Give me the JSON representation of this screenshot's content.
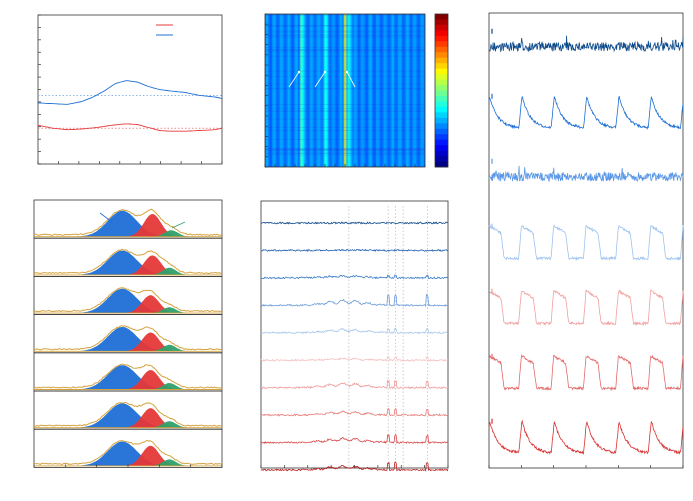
{
  "colors": {
    "blue_dark": "#0d4a8c",
    "blue": "#1f6fd6",
    "blue_light": "#5a97e6",
    "blue_pale": "#9ec2ee",
    "red_pale": "#f1a0a0",
    "red": "#e56a6a",
    "red_dark": "#d93030",
    "peak_blue": "#1f6fd6",
    "peak_red": "#e53838",
    "peak_green": "#2fa06a",
    "envelope": "#d4a23c",
    "dotted": "#8fb8e8",
    "dotted_red": "#e88a8a"
  },
  "chart_data": [
    {
      "id": "panel-top-left",
      "type": "line",
      "title": "",
      "xlabel": "",
      "ylabel": "",
      "legend": {
        "placement": "top-right",
        "entries": [
          "",
          ""
        ],
        "colors": [
          "#e53838",
          "#1f6fd6"
        ]
      },
      "grid": false,
      "xlim": [
        0,
        100
      ],
      "ylim": [
        0,
        100
      ],
      "series": [
        {
          "color": "#1f6fd6",
          "x": [
            0,
            8,
            16,
            24,
            30,
            36,
            42,
            48,
            54,
            60,
            66,
            72,
            80,
            88,
            96,
            100
          ],
          "y": [
            41,
            40.5,
            40,
            42,
            45,
            49,
            54,
            56,
            55,
            52,
            50,
            49,
            48,
            46,
            45,
            44
          ]
        },
        {
          "color": "#e53838",
          "x": [
            0,
            8,
            16,
            24,
            32,
            40,
            48,
            54,
            60,
            66,
            72,
            80,
            88,
            96,
            100
          ],
          "y": [
            26,
            24,
            23,
            23.5,
            24.5,
            26,
            27,
            26.5,
            24.5,
            22.5,
            22,
            22,
            22.5,
            23,
            24
          ]
        }
      ],
      "reference_lines": [
        {
          "y": 46,
          "color": "#8fb8e8",
          "style": "dotted"
        },
        {
          "y": 24,
          "color": "#e88a8a",
          "style": "dotted"
        }
      ]
    },
    {
      "id": "panel-heatmap",
      "type": "heatmap",
      "title": "",
      "colormap": "jet",
      "colorbar": true,
      "bright_columns": [
        0.23,
        0.5
      ],
      "dim_columns": [
        0.38,
        0.53
      ],
      "arrows": 3
    },
    {
      "id": "panel-traces",
      "type": "line",
      "title": "",
      "traces": [
        {
          "color": "#0d4a8c",
          "kind": "noise"
        },
        {
          "color": "#1f6fd6",
          "kind": "sawtooth",
          "cycles": 6
        },
        {
          "color": "#5a97e6",
          "kind": "noise"
        },
        {
          "color": "#9ec2ee",
          "kind": "square",
          "cycles": 6
        },
        {
          "color": "#f1a0a0",
          "kind": "square",
          "cycles": 6
        },
        {
          "color": "#e56a6a",
          "kind": "square",
          "cycles": 6
        },
        {
          "color": "#d93030",
          "kind": "sawtooth",
          "cycles": 6
        }
      ]
    },
    {
      "id": "panel-peak-fits",
      "type": "area",
      "title": "",
      "rows": [
        {
          "peaks": [
            {
              "center": 0.47,
              "height": 0.8,
              "width": 0.11,
              "color": "#1f6fd6"
            },
            {
              "center": 0.63,
              "height": 0.7,
              "width": 0.065,
              "color": "#e53838"
            },
            {
              "center": 0.73,
              "height": 0.2,
              "width": 0.05,
              "color": "#2fa06a"
            }
          ]
        },
        {
          "peaks": [
            {
              "center": 0.47,
              "height": 0.75,
              "width": 0.11,
              "color": "#1f6fd6"
            },
            {
              "center": 0.63,
              "height": 0.6,
              "width": 0.065,
              "color": "#e53838"
            },
            {
              "center": 0.72,
              "height": 0.22,
              "width": 0.05,
              "color": "#2fa06a"
            }
          ]
        },
        {
          "peaks": [
            {
              "center": 0.47,
              "height": 0.75,
              "width": 0.11,
              "color": "#1f6fd6"
            },
            {
              "center": 0.62,
              "height": 0.55,
              "width": 0.065,
              "color": "#e53838"
            },
            {
              "center": 0.72,
              "height": 0.18,
              "width": 0.05,
              "color": "#2fa06a"
            }
          ]
        },
        {
          "peaks": [
            {
              "center": 0.47,
              "height": 0.75,
              "width": 0.11,
              "color": "#1f6fd6"
            },
            {
              "center": 0.62,
              "height": 0.58,
              "width": 0.065,
              "color": "#e53838"
            },
            {
              "center": 0.72,
              "height": 0.2,
              "width": 0.05,
              "color": "#2fa06a"
            }
          ]
        },
        {
          "peaks": [
            {
              "center": 0.47,
              "height": 0.75,
              "width": 0.11,
              "color": "#1f6fd6"
            },
            {
              "center": 0.62,
              "height": 0.6,
              "width": 0.065,
              "color": "#e53838"
            },
            {
              "center": 0.72,
              "height": 0.2,
              "width": 0.05,
              "color": "#2fa06a"
            }
          ]
        },
        {
          "peaks": [
            {
              "center": 0.47,
              "height": 0.75,
              "width": 0.11,
              "color": "#1f6fd6"
            },
            {
              "center": 0.62,
              "height": 0.6,
              "width": 0.065,
              "color": "#e53838"
            },
            {
              "center": 0.72,
              "height": 0.2,
              "width": 0.05,
              "color": "#2fa06a"
            }
          ]
        },
        {
          "peaks": [
            {
              "center": 0.47,
              "height": 0.75,
              "width": 0.11,
              "color": "#1f6fd6"
            },
            {
              "center": 0.62,
              "height": 0.62,
              "width": 0.065,
              "color": "#e53838"
            },
            {
              "center": 0.72,
              "height": 0.2,
              "width": 0.05,
              "color": "#2fa06a"
            }
          ]
        }
      ]
    },
    {
      "id": "panel-spectra",
      "type": "line",
      "title": "",
      "dotted_verticals": [
        0.47,
        0.68,
        0.72,
        0.76,
        0.89
      ],
      "spectra": [
        {
          "color": "#0d4a8c",
          "hump": 0.0,
          "spikes": 0.0
        },
        {
          "color": "#1f5fb0",
          "hump": 0.05,
          "spikes": 0.0
        },
        {
          "color": "#3a7cc8",
          "hump": 0.25,
          "spikes": 0.2
        },
        {
          "color": "#6a9bd8",
          "hump": 0.6,
          "spikes": 1.0
        },
        {
          "color": "#a9c6ec",
          "hump": 0.4,
          "spikes": 0.4
        },
        {
          "color": "#f4c0c0",
          "hump": 0.2,
          "spikes": 0.3
        },
        {
          "color": "#ee9a9a",
          "hump": 0.5,
          "spikes": 0.6
        },
        {
          "color": "#e77a7a",
          "hump": 0.4,
          "spikes": 0.6
        },
        {
          "color": "#d84a4a",
          "hump": 0.5,
          "spikes": 0.7
        },
        {
          "color": "#b82020",
          "hump": 0.45,
          "spikes": 0.7
        }
      ]
    }
  ]
}
